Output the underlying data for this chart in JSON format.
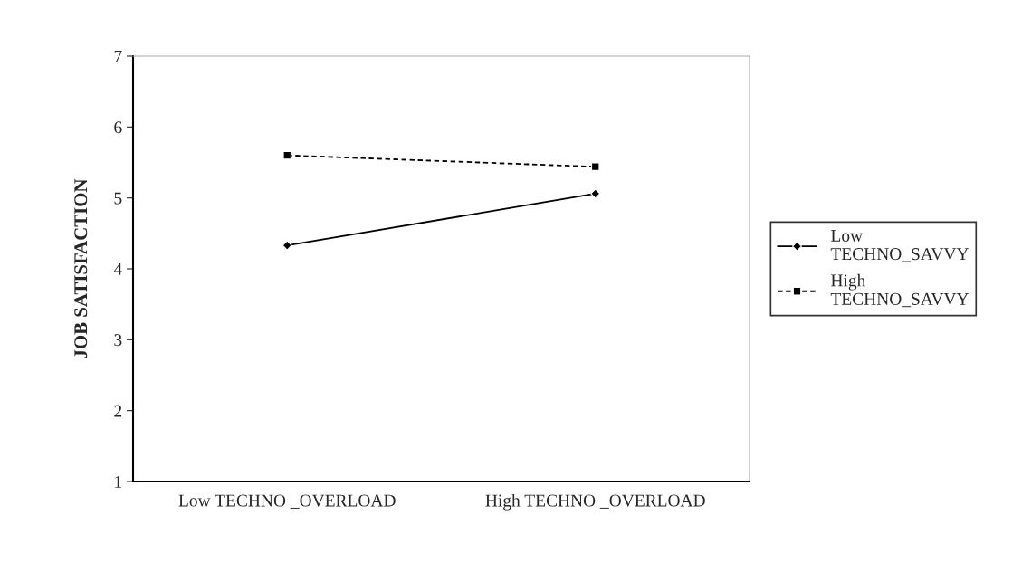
{
  "chart_data": {
    "type": "line",
    "ylabel": "JOB SATISFACTION",
    "categories": [
      "Low TECHNO _OVERLOAD",
      "High TECHNO _OVERLOAD"
    ],
    "series": [
      {
        "name": "Low TECHNO_SAVVY",
        "color": "#000000",
        "values": [
          4.33,
          5.06
        ],
        "marker": "diamond",
        "line_style": "solid"
      },
      {
        "name": "High TECHNO_SAVVY",
        "color": "#000000",
        "values": [
          5.6,
          5.44
        ],
        "marker": "square",
        "line_style": "dashed"
      }
    ],
    "ylim": [
      1,
      7
    ],
    "yticks": [
      1,
      2,
      3,
      4,
      5,
      6,
      7
    ],
    "grid": false,
    "legend": "right"
  }
}
